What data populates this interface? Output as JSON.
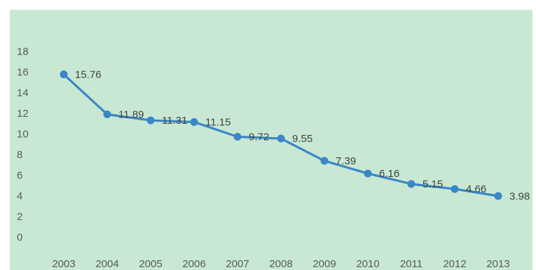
{
  "chart_data": {
    "type": "line",
    "title": "",
    "xlabel": "",
    "ylabel": "",
    "categories": [
      "2003",
      "2004",
      "2005",
      "2006",
      "2007",
      "2008",
      "2009",
      "2010",
      "2011",
      "2012",
      "2013"
    ],
    "series": [
      {
        "values": [
          15.76,
          11.89,
          11.31,
          11.15,
          9.72,
          9.55,
          7.39,
          6.16,
          5.15,
          4.66,
          3.98
        ],
        "labels": [
          "15.76",
          "11.89",
          "11.31",
          "11.15",
          "9.72",
          "9.55",
          "7.39",
          "6.16",
          "5.15",
          "4.66",
          "3.98"
        ],
        "color": "#3a87c6"
      }
    ],
    "yticks": [
      "0",
      "2",
      "4",
      "6",
      "8",
      "10",
      "12",
      "14",
      "16",
      "18"
    ],
    "ylim": [
      0,
      18
    ],
    "grid": false,
    "legend": "none",
    "background": "#c8e8d4"
  }
}
